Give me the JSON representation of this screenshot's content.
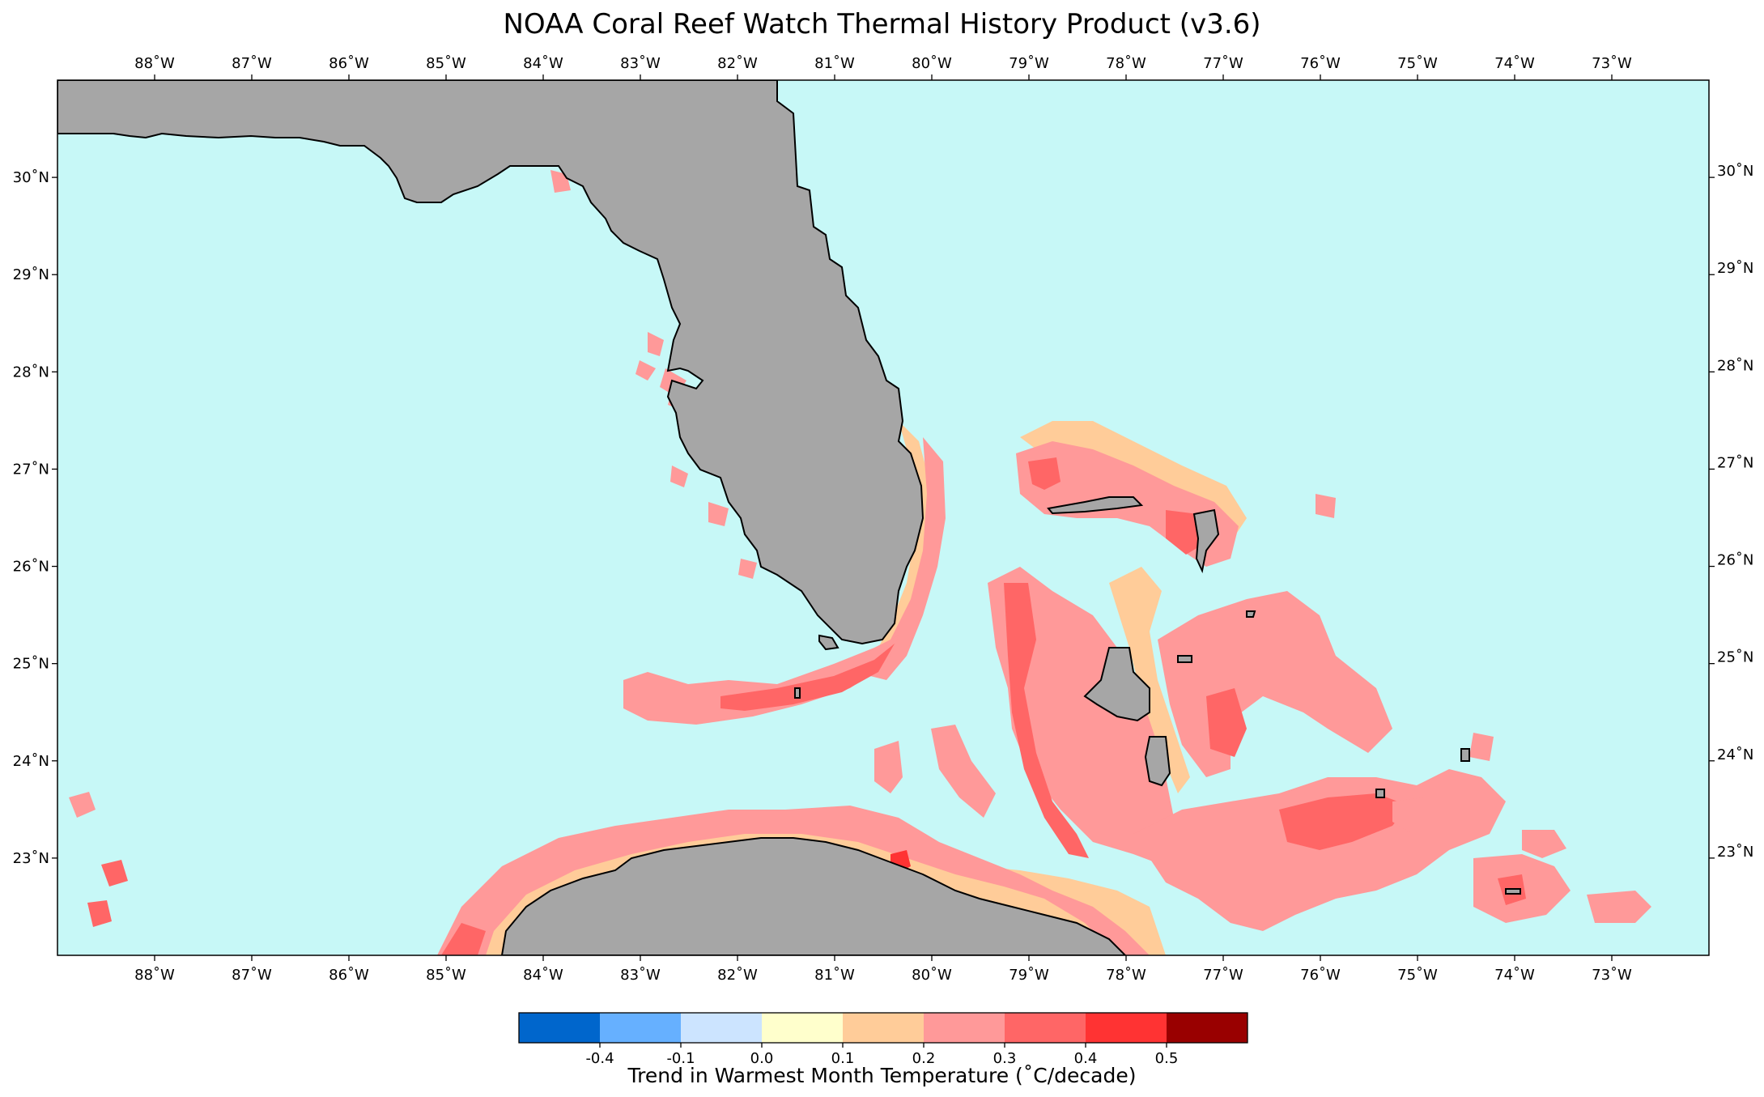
{
  "title": "NOAA Coral Reef Watch Thermal History Product (v3.6)",
  "map": {
    "lon_range": [
      -89.0,
      -72.0
    ],
    "lat_range": [
      22.0,
      31.0
    ],
    "ocean_color": "#c7f8f7",
    "land_color": "#a6a6a6",
    "coastline_color": "#000000",
    "lon_ticks": [
      "88˚W",
      "87˚W",
      "86˚W",
      "85˚W",
      "84˚W",
      "83˚W",
      "82˚W",
      "81˚W",
      "80˚W",
      "79˚W",
      "78˚W",
      "77˚W",
      "76˚W",
      "75˚W",
      "74˚W",
      "73˚W"
    ],
    "lat_ticks": [
      "23˚N",
      "24˚N",
      "25˚N",
      "26˚N",
      "27˚N",
      "28˚N",
      "29˚N",
      "30˚N"
    ]
  },
  "colorbar": {
    "label": "Trend in Warmest Month Temperature (˚C/decade)",
    "colors": [
      "#0066cc",
      "#66b0ff",
      "#cce4ff",
      "#ffffcc",
      "#ffcc99",
      "#ff9999",
      "#ff6666",
      "#ff3333",
      "#990000"
    ],
    "tick_labels": [
      "-0.4",
      "-0.1",
      "0.0",
      "0.1",
      "0.2",
      "0.3",
      "0.4",
      "0.5"
    ]
  }
}
